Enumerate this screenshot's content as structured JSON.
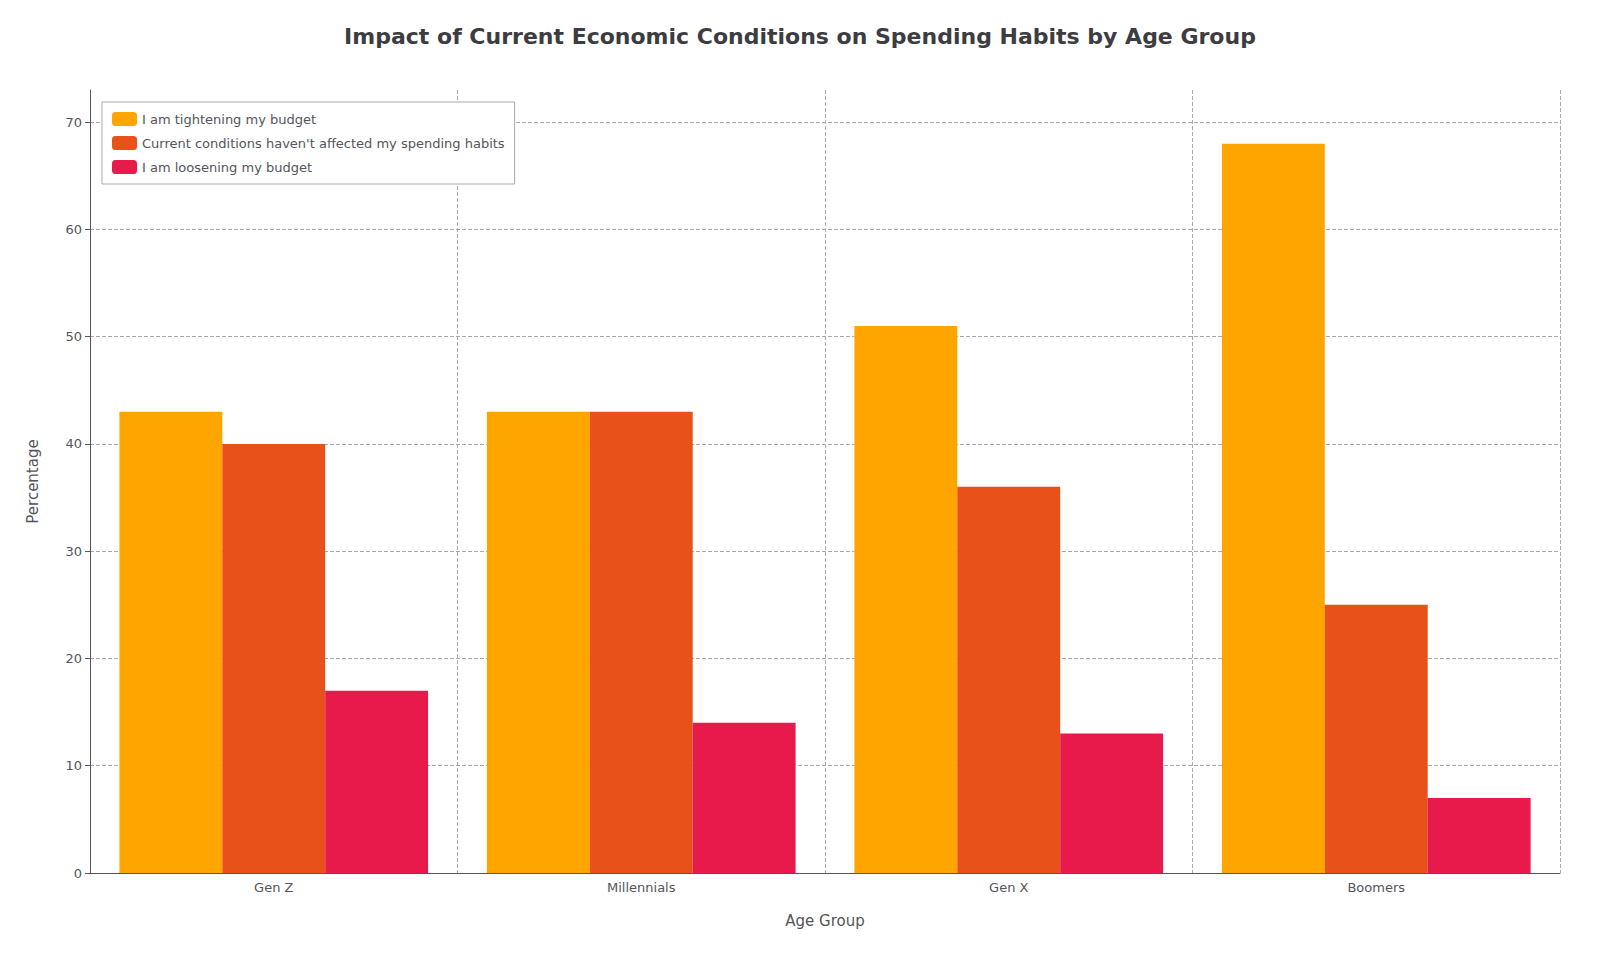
{
  "chart_data": {
    "type": "bar",
    "title": "Impact of Current Economic Conditions on Spending Habits by Age Group",
    "xlabel": "Age Group",
    "ylabel": "Percentage",
    "categories": [
      "Gen Z",
      "Millennials",
      "Gen X",
      "Boomers"
    ],
    "series": [
      {
        "name": "I am tightening my budget",
        "color": "#FFA500",
        "values": [
          43,
          43,
          51,
          68
        ]
      },
      {
        "name": "Current conditions haven't affected my spending habits",
        "color": "#E8521A",
        "values": [
          40,
          43,
          36,
          25
        ]
      },
      {
        "name": "I am loosening my budget",
        "color": "#E8194B",
        "values": [
          17,
          14,
          13,
          7
        ]
      }
    ],
    "ylim": [
      0,
      73
    ],
    "yticks": [
      0,
      10,
      20,
      30,
      40,
      50,
      60,
      70
    ],
    "grid": true,
    "legend": "upper left"
  }
}
